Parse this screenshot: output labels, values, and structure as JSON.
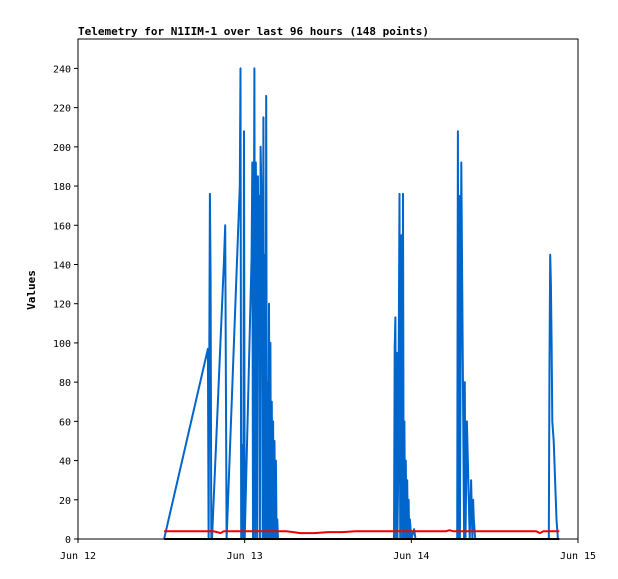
{
  "chart_data": {
    "type": "line",
    "title": "Telemetry for N1IIM-1 over last 96 hours (148 points)",
    "xlabel": "",
    "ylabel": "Values",
    "x_ticks": [
      "Jun 12",
      "Jun 13",
      "Jun 14",
      "Jun 15"
    ],
    "x_range_hours": [
      0,
      72
    ],
    "ylim": [
      0,
      255
    ],
    "y_ticks": [
      0,
      20,
      40,
      60,
      80,
      100,
      120,
      140,
      160,
      180,
      200,
      220,
      240
    ],
    "grid": false,
    "series": [
      {
        "color": "#0066cc",
        "x": [
          12.4,
          18.7,
          18.8,
          19.0,
          19.1,
          19.2,
          19.3,
          21.0,
          21.2,
          21.4,
          23.3,
          23.4,
          23.5,
          23.6,
          23.8,
          23.9,
          24.0,
          25.0,
          25.1,
          25.2,
          25.4,
          25.5,
          25.6,
          25.7,
          25.8,
          25.9,
          26.0,
          26.1,
          26.2,
          26.3,
          26.4,
          26.5,
          26.6,
          26.7,
          26.8,
          26.9,
          27.0,
          27.1,
          27.2,
          27.3,
          27.4,
          27.5,
          27.6,
          27.7,
          27.8,
          27.9,
          28.0,
          28.1,
          28.2,
          28.3,
          28.4,
          28.5,
          28.6,
          28.7,
          28.8,
          45.5,
          45.6,
          45.7,
          45.8,
          45.9,
          46.0,
          46.1,
          46.3,
          46.4,
          46.6,
          46.7,
          46.8,
          46.9,
          47.0,
          47.1,
          47.2,
          47.3,
          47.4,
          47.5,
          47.6,
          47.7,
          47.8,
          48.0,
          48.4,
          48.6,
          54.6,
          54.7,
          54.8,
          54.9,
          55.0,
          55.2,
          55.6,
          55.7,
          55.8,
          56.0,
          56.4,
          56.6,
          56.8,
          56.9,
          57.0,
          57.2,
          67.8,
          67.9,
          68.0,
          68.1,
          68.2,
          68.3,
          68.5,
          68.6,
          68.7,
          68.8,
          68.9,
          69.0,
          69.1,
          69.3
        ],
        "values": [
          0,
          97,
          0,
          176,
          132,
          0,
          0,
          140,
          160,
          0,
          180,
          240,
          0,
          48,
          0,
          208,
          0,
          144,
          192,
          0,
          240,
          0,
          192,
          160,
          0,
          185,
          140,
          175,
          0,
          200,
          180,
          128,
          0,
          215,
          0,
          145,
          0,
          226,
          0,
          80,
          0,
          120,
          0,
          100,
          0,
          70,
          0,
          60,
          0,
          50,
          0,
          40,
          0,
          10,
          0,
          0,
          98,
          113,
          0,
          95,
          0,
          30,
          176,
          0,
          155,
          0,
          176,
          0,
          60,
          0,
          40,
          0,
          30,
          0,
          20,
          0,
          10,
          0,
          5,
          0,
          0,
          208,
          0,
          175,
          0,
          192,
          0,
          80,
          0,
          60,
          0,
          30,
          0,
          20,
          10,
          0,
          0,
          90,
          145,
          130,
          100,
          60,
          50,
          40,
          30,
          20,
          10,
          5,
          0,
          0
        ]
      },
      {
        "color": "#ee0000",
        "x": [
          12.4,
          15.0,
          18.0,
          18.6,
          19.5,
          20.0,
          20.5,
          21.0,
          22.0,
          24.0,
          26.0,
          28.0,
          30.0,
          31.0,
          32.0,
          34.0,
          36.0,
          38.0,
          40.0,
          42.0,
          44.0,
          46.0,
          48.0,
          50.0,
          52.0,
          53.0,
          53.5,
          54.0,
          56.0,
          58.0,
          60.0,
          62.0,
          64.0,
          66.0,
          66.5,
          67.0,
          69.0,
          69.3
        ],
        "values": [
          4,
          4,
          4,
          4,
          4,
          3.5,
          3,
          4,
          4,
          4,
          4,
          4,
          4,
          3.5,
          3,
          3,
          3.5,
          3.5,
          4,
          4,
          4,
          4,
          4,
          4,
          4,
          4,
          4.5,
          4,
          4,
          4,
          4,
          4,
          4,
          4,
          3,
          4,
          4,
          4
        ]
      },
      {
        "color": "#000000",
        "x": [
          12.4,
          69.3
        ],
        "values": [
          0,
          0
        ]
      }
    ]
  }
}
